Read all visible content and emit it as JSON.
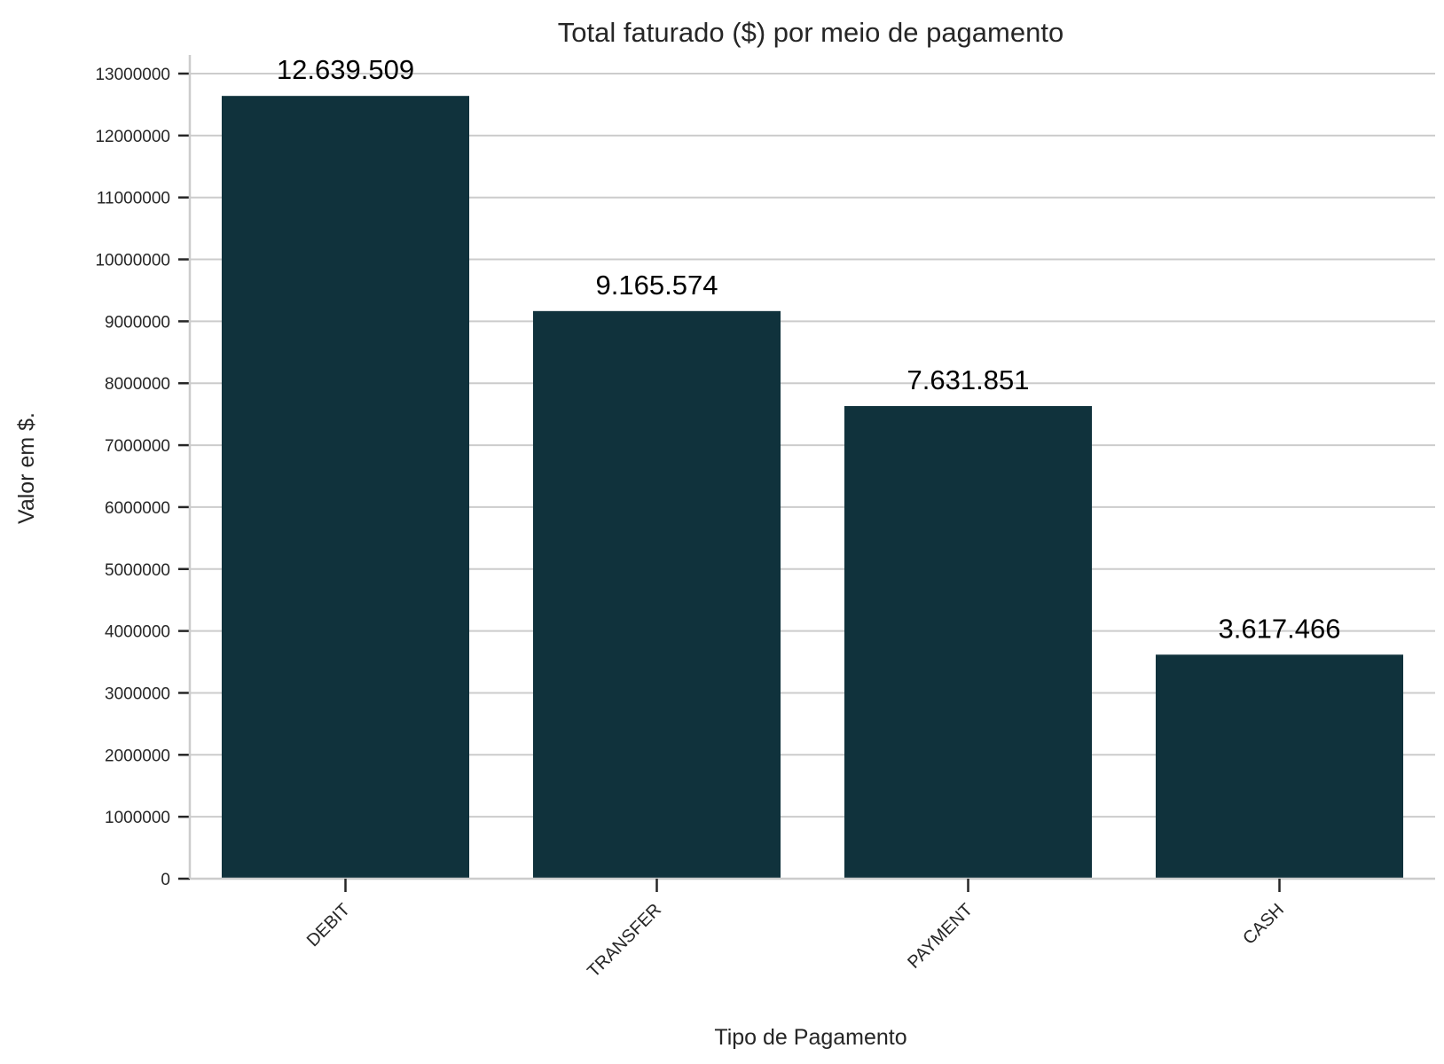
{
  "chart_data": {
    "type": "bar",
    "title": "Total faturado ($) por meio de pagamento",
    "xlabel": "Tipo de Pagamento",
    "ylabel": "Valor em $.",
    "categories": [
      "DEBIT",
      "TRANSFER",
      "PAYMENT",
      "CASH"
    ],
    "values": [
      12639509,
      9165574,
      7631851,
      3617466
    ],
    "data_labels": [
      "12.639.509",
      "9.165.574",
      "7.631.851",
      "3.617.466"
    ],
    "ylim": [
      0,
      13300000
    ],
    "yticks": [
      0,
      1000000,
      2000000,
      3000000,
      4000000,
      5000000,
      6000000,
      7000000,
      8000000,
      9000000,
      10000000,
      11000000,
      12000000,
      13000000
    ],
    "ytick_labels": [
      "0",
      "1000000",
      "2000000",
      "3000000",
      "4000000",
      "5000000",
      "6000000",
      "7000000",
      "8000000",
      "9000000",
      "10000000",
      "11000000",
      "12000000",
      "13000000"
    ],
    "grid": "horizontal",
    "bar_color": "#10323c",
    "grid_color": "#cccccc",
    "x_tick_rotation": 45
  }
}
